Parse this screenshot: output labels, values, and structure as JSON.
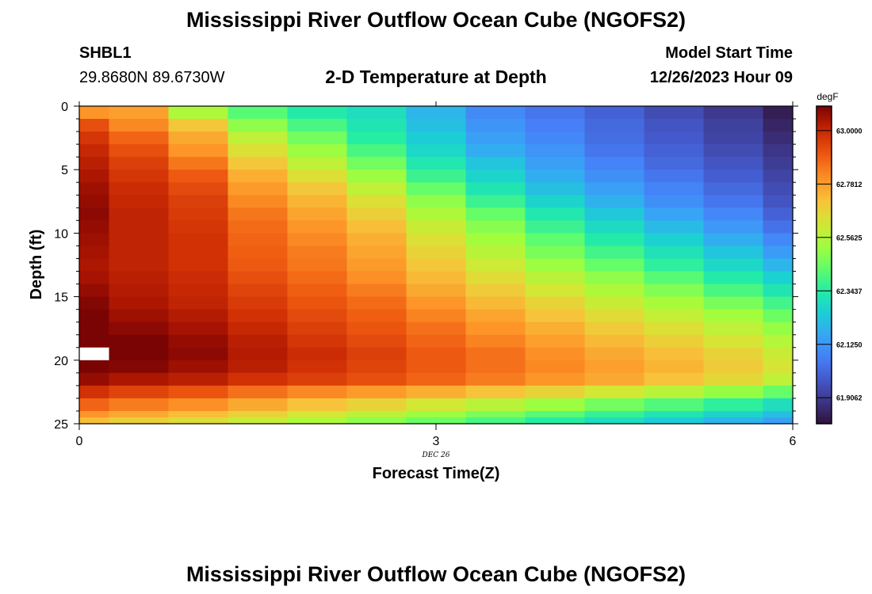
{
  "header": {
    "title": "Mississippi River Outflow Ocean Cube (NGOFS2)",
    "station": "SHBL1",
    "coordinates": "29.8680N  89.6730W",
    "subtitle": "2-D Temperature at Depth",
    "model_start_label": "Model Start Time",
    "model_start_value": "12/26/2023 Hour 09"
  },
  "footer": {
    "title_repeat": "Mississippi River Outflow Ocean Cube (NGOFS2)"
  },
  "chart_data": {
    "type": "heatmap",
    "title": "2-D Temperature at Depth",
    "xlabel": "Forecast Time(Z)",
    "ylabel": "Depth (ft)",
    "x_date_label": "DEC 26",
    "xlim": [
      0,
      6
    ],
    "ylim": [
      25,
      0
    ],
    "x_ticks": [
      0,
      3,
      6
    ],
    "y_ticks": [
      0,
      5,
      10,
      15,
      20,
      25
    ],
    "time_bin_edges": [
      0,
      0.25,
      0.75,
      1.25,
      1.75,
      2.25,
      2.75,
      3.25,
      3.75,
      4.25,
      4.75,
      5.25,
      5.75,
      6.0
    ],
    "depth_bin_edges": [
      0,
      1,
      2,
      3,
      4,
      5,
      6,
      7,
      8,
      9,
      10,
      11,
      12,
      13,
      14,
      15,
      16,
      17,
      18,
      19,
      20,
      21,
      22,
      23,
      24,
      24.5,
      25
    ],
    "colorbar": {
      "unit": "degF",
      "labels": [
        "63.0000",
        "62.7812",
        "62.5625",
        "62.3437",
        "62.1250",
        "61.9062"
      ],
      "vmin": 61.8,
      "vmax": 63.1,
      "colormap": "turbo"
    },
    "values": [
      [
        62.8,
        62.78,
        62.55,
        62.42,
        62.34,
        62.3,
        62.2,
        62.1,
        62.05,
        62.0,
        61.95,
        61.9,
        61.83
      ],
      [
        62.92,
        62.82,
        62.7,
        62.5,
        62.4,
        62.32,
        62.22,
        62.12,
        62.07,
        62.02,
        61.97,
        61.92,
        61.85
      ],
      [
        62.97,
        62.88,
        62.76,
        62.58,
        62.46,
        62.35,
        62.25,
        62.15,
        62.09,
        62.03,
        61.98,
        61.93,
        61.87
      ],
      [
        63.0,
        62.92,
        62.8,
        62.64,
        62.52,
        62.4,
        62.28,
        62.18,
        62.12,
        62.05,
        62.0,
        61.95,
        61.89
      ],
      [
        63.02,
        62.95,
        62.85,
        62.7,
        62.58,
        62.46,
        62.33,
        62.23,
        62.15,
        62.08,
        62.02,
        61.97,
        61.91
      ],
      [
        63.04,
        62.97,
        62.9,
        62.75,
        62.64,
        62.52,
        62.38,
        62.27,
        62.18,
        62.11,
        62.05,
        61.99,
        61.93
      ],
      [
        63.06,
        62.99,
        62.93,
        62.79,
        62.7,
        62.58,
        62.44,
        62.32,
        62.22,
        62.15,
        62.08,
        62.02,
        61.95
      ],
      [
        63.07,
        63.0,
        62.95,
        62.82,
        62.74,
        62.64,
        62.5,
        62.38,
        62.27,
        62.19,
        62.11,
        62.05,
        61.97
      ],
      [
        63.08,
        63.01,
        62.96,
        62.85,
        62.77,
        62.68,
        62.55,
        62.44,
        62.33,
        62.24,
        62.16,
        62.09,
        62.0
      ],
      [
        63.07,
        63.01,
        62.97,
        62.87,
        62.8,
        62.72,
        62.6,
        62.49,
        62.38,
        62.29,
        62.21,
        62.13,
        62.04
      ],
      [
        63.06,
        63.01,
        62.98,
        62.88,
        62.82,
        62.75,
        62.64,
        62.53,
        62.43,
        62.34,
        62.26,
        62.18,
        62.09
      ],
      [
        63.05,
        63.01,
        62.98,
        62.89,
        62.84,
        62.77,
        62.67,
        62.57,
        62.47,
        62.39,
        62.31,
        62.23,
        62.14
      ],
      [
        63.04,
        63.01,
        62.98,
        62.9,
        62.85,
        62.79,
        62.7,
        62.61,
        62.52,
        62.44,
        62.36,
        62.28,
        62.2
      ],
      [
        63.05,
        63.02,
        62.99,
        62.92,
        62.87,
        62.81,
        62.73,
        62.65,
        62.57,
        62.5,
        62.42,
        62.34,
        62.26
      ],
      [
        63.07,
        63.03,
        63.0,
        62.94,
        62.89,
        62.84,
        62.76,
        62.69,
        62.62,
        62.55,
        62.48,
        62.4,
        62.32
      ],
      [
        63.09,
        63.04,
        63.01,
        62.96,
        62.91,
        62.87,
        62.8,
        62.73,
        62.67,
        62.6,
        62.54,
        62.47,
        62.39
      ],
      [
        63.11,
        63.06,
        63.03,
        62.98,
        62.93,
        62.89,
        62.83,
        62.77,
        62.71,
        62.65,
        62.59,
        62.53,
        62.45
      ],
      [
        63.13,
        63.08,
        63.05,
        63.0,
        62.95,
        62.91,
        62.86,
        62.8,
        62.75,
        62.69,
        62.64,
        62.58,
        62.51
      ],
      [
        63.14,
        63.1,
        63.07,
        63.02,
        62.97,
        62.93,
        62.88,
        62.83,
        62.78,
        62.73,
        62.68,
        62.63,
        62.56
      ],
      [
        null,
        63.1,
        63.08,
        63.03,
        62.99,
        62.95,
        62.9,
        62.86,
        62.81,
        62.76,
        62.72,
        62.67,
        62.6
      ],
      [
        63.12,
        63.09,
        63.06,
        63.02,
        62.98,
        62.94,
        62.9,
        62.86,
        62.82,
        62.78,
        62.74,
        62.69,
        62.63
      ],
      [
        63.07,
        63.04,
        63.02,
        62.98,
        62.95,
        62.92,
        62.88,
        62.84,
        62.8,
        62.76,
        62.71,
        62.66,
        62.58
      ],
      [
        62.98,
        62.94,
        62.91,
        62.86,
        62.82,
        62.79,
        62.75,
        62.71,
        62.67,
        62.62,
        62.57,
        62.51,
        62.44
      ],
      [
        62.88,
        62.84,
        62.81,
        62.76,
        62.71,
        62.67,
        62.62,
        62.57,
        62.52,
        62.46,
        62.41,
        62.36,
        62.3
      ],
      [
        62.8,
        62.76,
        62.72,
        62.67,
        62.62,
        62.57,
        62.52,
        62.47,
        62.42,
        62.37,
        62.32,
        62.27,
        62.22
      ],
      [
        62.72,
        62.68,
        62.65,
        62.6,
        62.55,
        62.5,
        62.45,
        62.4,
        62.35,
        62.3,
        62.25,
        62.2,
        62.15
      ]
    ]
  }
}
